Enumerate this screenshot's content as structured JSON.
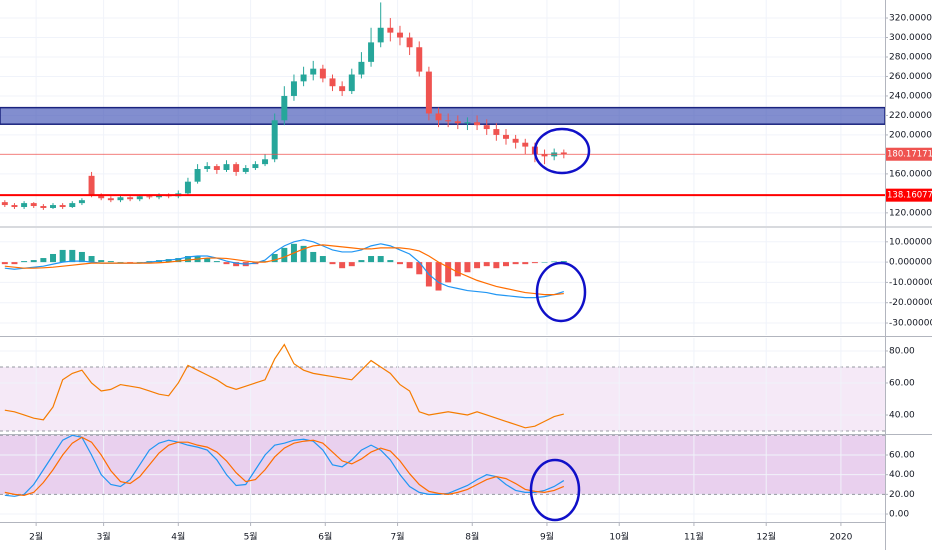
{
  "chart_data": [
    {
      "type": "candlestick",
      "x": [
        18,
        22,
        26,
        30,
        34,
        38,
        42,
        46,
        50,
        54,
        58,
        62,
        66,
        70,
        74,
        78,
        82,
        86,
        90,
        94,
        98,
        102,
        106,
        110,
        114,
        118,
        122,
        126,
        130,
        134,
        138,
        142,
        146,
        150,
        154,
        158,
        162,
        166,
        170,
        174,
        178,
        182,
        186,
        190,
        194,
        198,
        202,
        206,
        210,
        214,
        218,
        222,
        226,
        230,
        234,
        238,
        242,
        246,
        250
      ],
      "open": [
        131,
        128,
        126,
        130,
        127,
        125,
        128,
        126,
        130,
        158,
        138,
        135,
        133,
        136,
        134,
        137,
        136,
        138,
        137,
        140,
        152,
        165,
        168,
        164,
        170,
        162,
        166,
        170,
        175,
        215,
        240,
        255,
        262,
        268,
        258,
        250,
        245,
        262,
        275,
        295,
        310,
        305,
        300,
        290,
        265,
        222,
        215,
        214,
        212,
        213,
        210,
        206,
        200,
        196,
        192,
        188,
        180,
        178,
        182
      ],
      "high": [
        133,
        130,
        132,
        131,
        129,
        130,
        130,
        132,
        135,
        162,
        140,
        137,
        138,
        137,
        139,
        139,
        140,
        140,
        143,
        156,
        170,
        172,
        170,
        174,
        172,
        169,
        173,
        180,
        222,
        250,
        262,
        270,
        276,
        272,
        262,
        255,
        268,
        285,
        310,
        336,
        320,
        312,
        305,
        296,
        270,
        228,
        222,
        220,
        218,
        220,
        216,
        212,
        206,
        200,
        196,
        192,
        185,
        186,
        185
      ],
      "low": [
        126,
        124,
        124,
        125,
        123,
        124,
        124,
        125,
        128,
        136,
        133,
        131,
        131,
        132,
        132,
        134,
        134,
        135,
        135,
        138,
        150,
        162,
        160,
        162,
        158,
        160,
        164,
        168,
        172,
        210,
        235,
        250,
        256,
        254,
        245,
        240,
        242,
        258,
        270,
        290,
        296,
        292,
        282,
        260,
        215,
        208,
        208,
        206,
        205,
        205,
        200,
        194,
        190,
        186,
        180,
        172,
        170,
        174,
        176
      ],
      "close": [
        128,
        126,
        130,
        127,
        125,
        128,
        126,
        130,
        133,
        138,
        135,
        133,
        136,
        134,
        137,
        136,
        138,
        137,
        140,
        152,
        165,
        168,
        164,
        170,
        162,
        166,
        170,
        175,
        215,
        240,
        255,
        262,
        268,
        258,
        250,
        245,
        262,
        275,
        295,
        310,
        305,
        300,
        290,
        265,
        222,
        215,
        214,
        212,
        213,
        210,
        206,
        200,
        196,
        192,
        188,
        180,
        178,
        182,
        180.17171137
      ],
      "up_color": "#26a69a",
      "down_color": "#ef5350",
      "xlim": [
        16,
        383.3
      ],
      "ylim": [
        106.5,
        338.5
      ],
      "yticks": [
        {
          "value": 120,
          "label": "120.00000000"
        },
        {
          "value": 160,
          "label": "160.00000000"
        },
        {
          "value": 200,
          "label": "200.00000000"
        },
        {
          "value": 220,
          "label": "220.00000000"
        },
        {
          "value": 240,
          "label": "240.00000000"
        },
        {
          "value": 260,
          "label": "260.00000000"
        },
        {
          "value": 280,
          "label": "280.00000000"
        },
        {
          "value": 300,
          "label": "300.00000000"
        },
        {
          "value": 320,
          "label": "320.00000000"
        }
      ],
      "grid": true,
      "zone": {
        "range": [
          211,
          228
        ],
        "color": "#3f51b5"
      },
      "price_lines": [
        {
          "value": 180.17171137,
          "color": "#ef5350"
        },
        {
          "value": 138.16077305,
          "color": "#ff0000"
        }
      ]
    },
    {
      "type": "macd",
      "x": [
        18,
        22,
        26,
        30,
        34,
        38,
        42,
        46,
        50,
        54,
        58,
        62,
        66,
        70,
        74,
        78,
        82,
        86,
        90,
        94,
        98,
        102,
        106,
        110,
        114,
        118,
        122,
        126,
        130,
        134,
        138,
        142,
        146,
        150,
        154,
        158,
        162,
        166,
        170,
        174,
        178,
        182,
        186,
        190,
        194,
        198,
        202,
        206,
        210,
        214,
        218,
        222,
        226,
        230,
        234,
        238,
        242,
        246,
        250
      ],
      "histogram": {
        "values": [
          -1,
          -1,
          0.5,
          1,
          2,
          4,
          6,
          6,
          5,
          3,
          1,
          0.5,
          0,
          -0.5,
          0,
          0.5,
          1,
          1.5,
          2,
          3,
          3,
          2,
          0.5,
          -1,
          -2,
          -2,
          -1,
          0.5,
          4,
          7,
          9,
          8,
          5,
          3,
          -1,
          -3,
          -2,
          1,
          3,
          3,
          1,
          -1,
          -3,
          -6,
          -12,
          -14,
          -10,
          -7,
          -5,
          -3,
          -2,
          -3,
          -2,
          -1,
          -1,
          -0.5,
          0,
          0.3,
          0.5
        ],
        "up_color": "#26a69a",
        "down_color": "#ef5350"
      },
      "series": [
        {
          "color": "#2196f3",
          "values": [
            -3,
            -3.5,
            -3,
            -2.5,
            -2,
            -1,
            0,
            0.5,
            0.5,
            0,
            -0.5,
            -0.5,
            -0.5,
            -0.5,
            -0.5,
            0,
            0.5,
            1,
            1.5,
            2.5,
            3,
            3,
            2,
            0.5,
            -0.5,
            -1,
            -0.5,
            1,
            5,
            8,
            10,
            11,
            10,
            8,
            6,
            5,
            5,
            6,
            8,
            9,
            8,
            6,
            4,
            0,
            -6,
            -10,
            -12,
            -13,
            -14,
            -14.5,
            -15,
            -16,
            -16.5,
            -17,
            -17.5,
            -17.5,
            -17,
            -16,
            -14.5
          ]
        },
        {
          "color": "#ff6d00",
          "values": [
            -2,
            -2.5,
            -3,
            -3,
            -2.8,
            -2.5,
            -2,
            -1.5,
            -1,
            -0.5,
            -0.5,
            -0.5,
            -0.5,
            -0.5,
            -0.5,
            -0.5,
            -0.3,
            0,
            0.5,
            1,
            1.5,
            2,
            2,
            1.8,
            1.2,
            0.5,
            0,
            0,
            1,
            2.5,
            4.5,
            6.5,
            8,
            8.5,
            8,
            7.5,
            7,
            6.5,
            6.5,
            7,
            7,
            7,
            6.5,
            5.5,
            3,
            0,
            -2.5,
            -5,
            -7,
            -9,
            -10.5,
            -12,
            -13,
            -14,
            -15,
            -15.5,
            -16,
            -16,
            -15.5
          ]
        }
      ],
      "xlim": [
        16,
        383.3
      ],
      "ylim": [
        -35.9,
        16.8
      ],
      "yticks": [
        {
          "value": -30,
          "label": "-30.00000000"
        },
        {
          "value": -20,
          "label": "-20.00000000"
        },
        {
          "value": -10,
          "label": "-10.00000000"
        },
        {
          "value": 0,
          "label": "0.00000000"
        },
        {
          "value": 10,
          "label": "10.00000000"
        }
      ],
      "grid": true
    },
    {
      "type": "line",
      "x": [
        18,
        22,
        26,
        30,
        34,
        38,
        42,
        46,
        50,
        54,
        58,
        62,
        66,
        70,
        74,
        78,
        82,
        86,
        90,
        94,
        98,
        102,
        106,
        110,
        114,
        118,
        122,
        126,
        130,
        134,
        138,
        142,
        146,
        150,
        154,
        158,
        162,
        166,
        170,
        174,
        178,
        182,
        186,
        190,
        194,
        198,
        202,
        206,
        210,
        214,
        218,
        222,
        226,
        230,
        234,
        238,
        242,
        246,
        250
      ],
      "series": [
        {
          "color": "#f57c00",
          "values": [
            43,
            42,
            40,
            38,
            37,
            45,
            62,
            66,
            68,
            60,
            55,
            56,
            59,
            58,
            57,
            55,
            53,
            52,
            60,
            71,
            68,
            65,
            62,
            58,
            56,
            58,
            60,
            62,
            75,
            84,
            72,
            68,
            66,
            65,
            64,
            63,
            62,
            68,
            74,
            70,
            66,
            59,
            55,
            42,
            40,
            41,
            42,
            41,
            40,
            42,
            40,
            38,
            36,
            34,
            32,
            33,
            36,
            39,
            40.6
          ]
        }
      ],
      "band": [
        30,
        70
      ],
      "band_color": "rgba(156,39,176,0.1)",
      "xlim": [
        16,
        383.3
      ],
      "ylim": [
        28.75,
        88.1
      ],
      "yticks": [
        {
          "value": 40,
          "label": "40.00"
        },
        {
          "value": 60,
          "label": "60.00"
        },
        {
          "value": 80,
          "label": "80.00"
        }
      ],
      "grid": true
    },
    {
      "type": "line",
      "x": [
        18,
        22,
        26,
        30,
        34,
        38,
        42,
        46,
        50,
        54,
        58,
        62,
        66,
        70,
        74,
        78,
        82,
        86,
        90,
        94,
        98,
        102,
        106,
        110,
        114,
        118,
        122,
        126,
        130,
        134,
        138,
        142,
        146,
        150,
        154,
        158,
        162,
        166,
        170,
        174,
        178,
        182,
        186,
        190,
        194,
        198,
        202,
        206,
        210,
        214,
        218,
        222,
        226,
        230,
        234,
        238,
        242,
        246,
        250
      ],
      "series": [
        {
          "color": "#2196f3",
          "values": [
            19,
            18,
            20,
            30,
            45,
            60,
            75,
            80,
            78,
            60,
            40,
            30,
            28,
            35,
            50,
            65,
            72,
            75,
            73,
            70,
            68,
            65,
            55,
            40,
            29,
            30,
            45,
            60,
            70,
            72,
            75,
            76,
            74,
            65,
            50,
            48,
            55,
            65,
            70,
            65,
            55,
            40,
            28,
            22,
            20,
            20,
            21,
            25,
            29,
            35,
            40,
            38,
            30,
            24,
            22,
            22,
            24,
            28,
            34
          ]
        },
        {
          "color": "#ff6d00",
          "values": [
            22,
            20,
            19,
            22,
            32,
            45,
            60,
            72,
            78,
            73,
            60,
            44,
            33,
            31,
            38,
            50,
            62,
            70,
            73,
            73,
            70,
            68,
            63,
            54,
            42,
            33,
            35,
            45,
            58,
            67,
            72,
            74,
            75,
            72,
            63,
            54,
            51,
            56,
            63,
            67,
            64,
            54,
            41,
            30,
            23,
            21,
            20,
            22,
            25,
            30,
            35,
            38,
            36,
            31,
            25,
            23,
            22,
            24,
            28
          ]
        }
      ],
      "band": [
        20,
        80
      ],
      "band_color": "rgba(156,39,176,0.22)",
      "xlim": [
        16,
        383.3
      ],
      "ylim": [
        -8.1,
        79.3
      ],
      "yticks": [
        {
          "value": 0,
          "label": "0.00"
        },
        {
          "value": 20,
          "label": "20.00"
        },
        {
          "value": 40,
          "label": "40.00"
        },
        {
          "value": 60,
          "label": "60.00"
        }
      ],
      "xticks": [
        {
          "value": 31,
          "label": "2월"
        },
        {
          "value": 59,
          "label": "3월"
        },
        {
          "value": 90,
          "label": "4월"
        },
        {
          "value": 120,
          "label": "5월"
        },
        {
          "value": 151,
          "label": "6월"
        },
        {
          "value": 181,
          "label": "7월"
        },
        {
          "value": 212,
          "label": "8월"
        },
        {
          "value": 243,
          "label": "9월"
        },
        {
          "value": 273,
          "label": "10월"
        },
        {
          "value": 304,
          "label": "11월"
        },
        {
          "value": 334,
          "label": "12월"
        },
        {
          "value": 365,
          "label": "2020"
        }
      ],
      "grid": true
    }
  ]
}
